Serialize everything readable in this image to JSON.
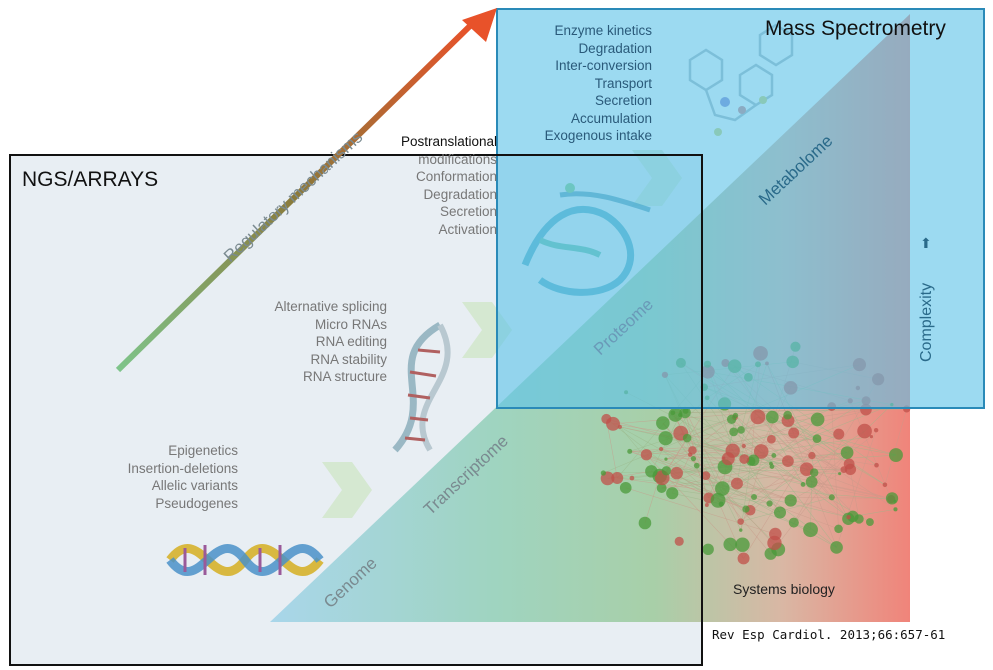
{
  "boxes": {
    "ngs": {
      "title": "NGS/ARRAYS"
    },
    "ms": {
      "title": "Mass Spectrometry"
    }
  },
  "arrow": {
    "label": "Regulatory mechanisms"
  },
  "layers": {
    "genome": "Genome",
    "transcriptome": "Transcriptome",
    "proteome": "Proteome",
    "metabolome": "Metabolome",
    "systems": "Systems biology"
  },
  "complexity": {
    "label": "Complexity",
    "icon": "up-arrow-icon"
  },
  "lists": {
    "genome_mechanisms": [
      "Epigenetics",
      "Insertion-deletions",
      "Allelic variants",
      "Pseudogenes"
    ],
    "transcript_mechanisms": [
      "Alternative splicing",
      "Micro RNAs",
      "RNA editing",
      "RNA stability",
      "RNA structure"
    ],
    "protein_mechanisms": [
      "Postranslational",
      "modifications",
      "Conformation",
      "Degradation",
      "Secretion",
      "Activation"
    ],
    "metabolite_mechanisms": [
      "Enzyme kinetics",
      "Degradation",
      "Inter-conversion",
      "Transport",
      "Secretion",
      "Accumulation",
      "Exogenous intake"
    ]
  },
  "citation": "Rev Esp Cardiol. 2013;66:657-61",
  "colors": {
    "ms_box": "#5fc4e8",
    "ngs_box": "#e8eef3",
    "arrow_start": "#7ec48a",
    "arrow_end": "#e8522a",
    "network_green": "#4a9a3a",
    "network_red": "#c0504a"
  }
}
